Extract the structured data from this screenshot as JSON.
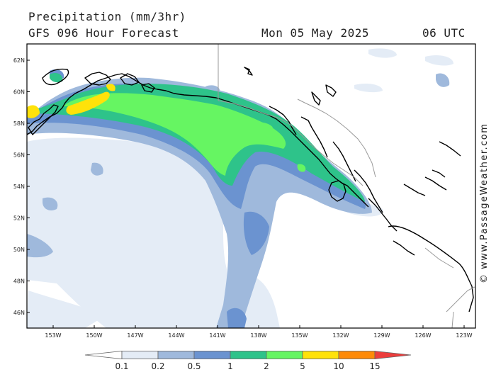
{
  "header": {
    "title": "Precipitation (mm/3hr)",
    "model": "GFS 096 Hour Forecast",
    "date": "Mon 05 May 2025",
    "time": "06 UTC"
  },
  "credit": "© www.PassageWeather.com",
  "map": {
    "lat_labels": [
      "62N",
      "60N",
      "58N",
      "56N",
      "54N",
      "52N",
      "50N",
      "48N",
      "46N"
    ],
    "lon_labels": [
      "153W",
      "150W",
      "147W",
      "144W",
      "141W",
      "138W",
      "135W",
      "132W",
      "129W",
      "126W",
      "123W"
    ]
  },
  "legend": {
    "labels": [
      "0.1",
      "0.2",
      "0.5",
      "1",
      "2",
      "5",
      "10",
      "15"
    ],
    "colors": [
      "#ffffff",
      "#e4ecf6",
      "#9fb9dc",
      "#6b93d0",
      "#2ec38a",
      "#66f562",
      "#ffe20a",
      "#fe8a07",
      "#ec3d3c"
    ]
  },
  "colors": {
    "very_light": "#e4ecf6",
    "light_blue": "#9fb9dc",
    "mid_blue": "#6b93d0",
    "teal": "#2ec38a",
    "green": "#66f562",
    "yellow": "#ffe20a",
    "orange": "#fe8a07",
    "red": "#ec3d3c"
  }
}
